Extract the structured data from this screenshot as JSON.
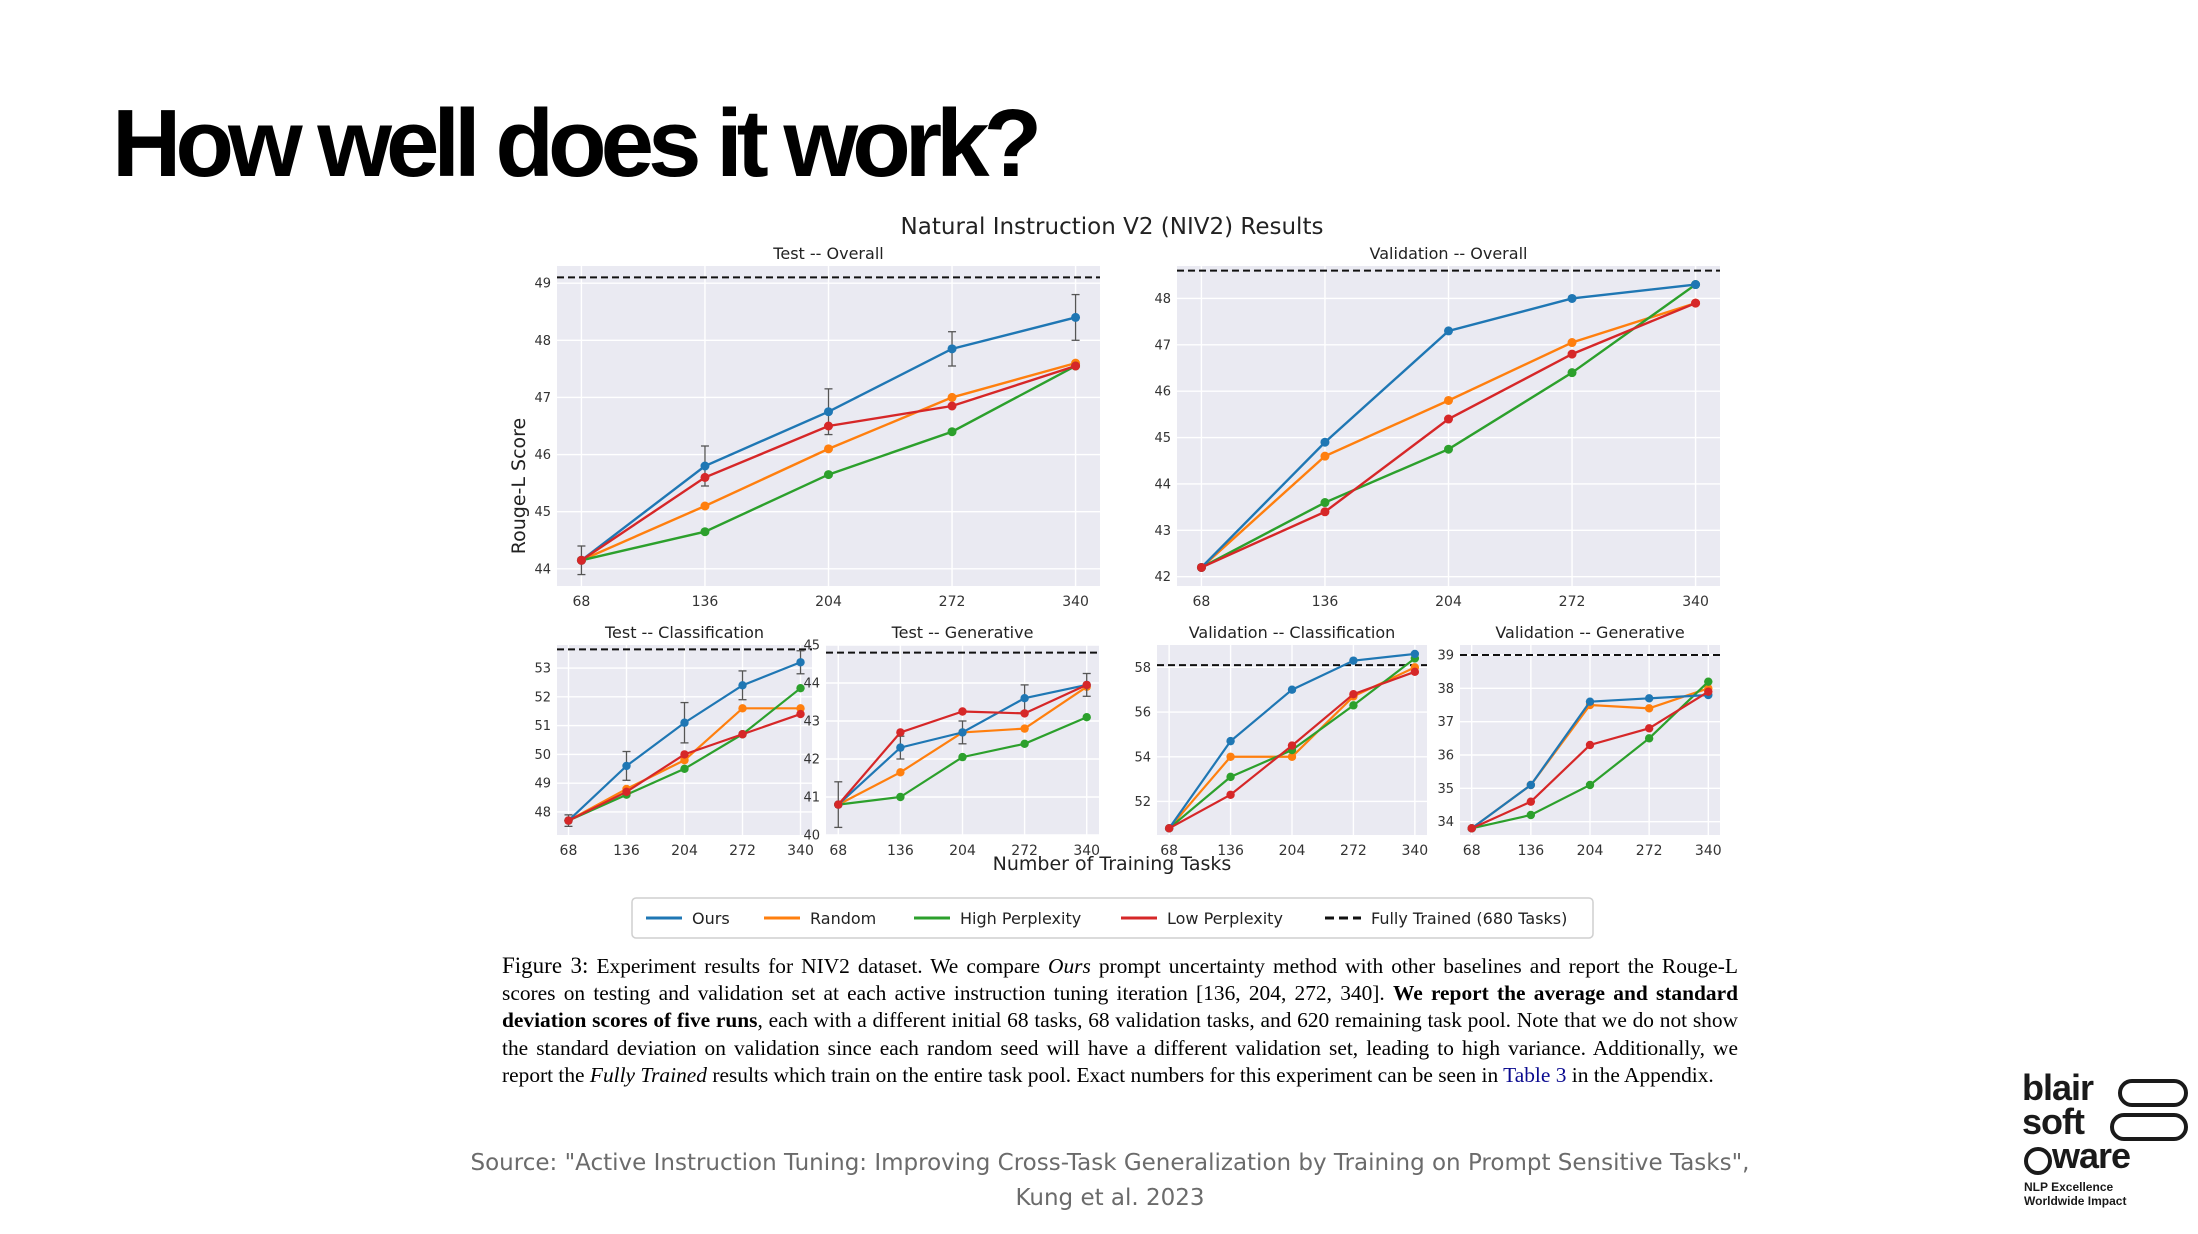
{
  "slide": {
    "title": "How well does it work?",
    "source_line1": "Source: \"Active Instruction Tuning: Improving Cross-Task Generalization by Training on Prompt Sensitive Tasks\",",
    "source_line2": "Kung et al. 2023"
  },
  "logo": {
    "words": [
      "blair",
      "soft",
      "ware"
    ],
    "tagline": [
      "NLP Excellence",
      "Worldwide Impact"
    ]
  },
  "caption": {
    "label": "Figure 3:",
    "part1": "Experiment results for NIV2 dataset. We compare ",
    "ours_italic": "Ours",
    "part2": " prompt uncertainty method with other baselines and report the Rouge-L scores on testing and validation set at each active instruction tuning iteration [136, 204, 272, 340]. ",
    "bold": "We report the average and standard deviation scores of five runs",
    "part3": ", each with a different initial 68 tasks, 68 validation tasks, and 620 remaining task pool. Note that we do not show the standard deviation on validation since each random seed will have a different validation set, leading to high variance. Additionally, we report the ",
    "fully_italic": "Fully Trained",
    "part4": " results which train on the entire task pool. Exact numbers for this experiment can be seen in ",
    "ref": "Table 3",
    "part5": " in the Appendix."
  },
  "chart_data": {
    "suptitle": "Natural Instruction V2 (NIV2) Results",
    "xlabel": "Number of Training Tasks",
    "ylabel": "Rouge-L Score",
    "x": [
      68,
      136,
      204,
      272,
      340
    ],
    "series_meta": [
      {
        "name": "Ours",
        "color": "#1f77b4"
      },
      {
        "name": "Random",
        "color": "#ff7f0e"
      },
      {
        "name": "High Perplexity",
        "color": "#2ca02c"
      },
      {
        "name": "Low Perplexity",
        "color": "#d62728"
      }
    ],
    "legend": {
      "placement": "bottom-center",
      "entries": [
        "Ours",
        "Random",
        "High Perplexity",
        "Low Perplexity",
        "Fully Trained (680 Tasks)"
      ],
      "fully_trained_label": "Fully Trained (680 Tasks)"
    },
    "panels": [
      {
        "type": "line",
        "title": "Test -- Overall",
        "ylim": [
          43.7,
          49.3
        ],
        "yticks": [
          44,
          45,
          46,
          47,
          48,
          49
        ],
        "fully_trained": 49.1,
        "series": [
          {
            "name": "Ours",
            "values": [
              44.15,
              45.8,
              46.75,
              47.85,
              48.4
            ],
            "err": [
              0.25,
              0.35,
              0.4,
              0.3,
              0.4
            ]
          },
          {
            "name": "Random",
            "values": [
              44.15,
              45.1,
              46.1,
              47.0,
              47.6
            ]
          },
          {
            "name": "High Perplexity",
            "values": [
              44.15,
              44.65,
              45.65,
              46.4,
              47.55
            ]
          },
          {
            "name": "Low Perplexity",
            "values": [
              44.15,
              45.6,
              46.5,
              46.85,
              47.55
            ]
          }
        ]
      },
      {
        "type": "line",
        "title": "Validation -- Overall",
        "ylim": [
          41.8,
          48.7
        ],
        "yticks": [
          42,
          43,
          44,
          45,
          46,
          47,
          48
        ],
        "fully_trained": 48.6,
        "series": [
          {
            "name": "Ours",
            "values": [
              42.2,
              44.9,
              47.3,
              48.0,
              48.3
            ]
          },
          {
            "name": "Random",
            "values": [
              42.2,
              44.6,
              45.8,
              47.05,
              47.9
            ]
          },
          {
            "name": "High Perplexity",
            "values": [
              42.2,
              43.6,
              44.75,
              46.4,
              48.3
            ]
          },
          {
            "name": "Low Perplexity",
            "values": [
              42.2,
              43.4,
              45.4,
              46.8,
              47.9
            ]
          }
        ]
      },
      {
        "type": "line",
        "title": "Test -- Classification",
        "ylim": [
          47.2,
          53.8
        ],
        "yticks": [
          48,
          49,
          50,
          51,
          52,
          53
        ],
        "fully_trained": 53.65,
        "series": [
          {
            "name": "Ours",
            "values": [
              47.7,
              49.6,
              51.1,
              52.4,
              53.2
            ],
            "err": [
              0.2,
              0.5,
              0.7,
              0.5,
              0.4
            ]
          },
          {
            "name": "Random",
            "values": [
              47.7,
              48.8,
              49.8,
              51.6,
              51.6
            ]
          },
          {
            "name": "High Perplexity",
            "values": [
              47.7,
              48.6,
              49.5,
              50.7,
              52.3
            ]
          },
          {
            "name": "Low Perplexity",
            "values": [
              47.7,
              48.7,
              50.0,
              50.7,
              51.4
            ]
          }
        ]
      },
      {
        "type": "line",
        "title": "Test -- Generative",
        "ylim": [
          40.0,
          45.0
        ],
        "yticks": [
          40,
          41,
          42,
          43,
          44,
          45
        ],
        "fully_trained": 44.8,
        "series": [
          {
            "name": "Ours",
            "values": [
              40.8,
              42.3,
              42.7,
              43.6,
              43.95
            ],
            "err": [
              0.6,
              0.3,
              0.3,
              0.35,
              0.3
            ]
          },
          {
            "name": "Random",
            "values": [
              40.8,
              41.65,
              42.7,
              42.8,
              43.9
            ]
          },
          {
            "name": "High Perplexity",
            "values": [
              40.8,
              41.0,
              42.05,
              42.4,
              43.1
            ]
          },
          {
            "name": "Low Perplexity",
            "values": [
              40.8,
              42.7,
              43.25,
              43.2,
              43.95
            ]
          }
        ]
      },
      {
        "type": "line",
        "title": "Validation -- Classification",
        "ylim": [
          50.5,
          59.0
        ],
        "yticks": [
          52,
          54,
          56,
          58
        ],
        "fully_trained": 58.1,
        "series": [
          {
            "name": "Ours",
            "values": [
              50.8,
              54.7,
              57.0,
              58.3,
              58.6
            ]
          },
          {
            "name": "Random",
            "values": [
              50.8,
              54.0,
              54.0,
              56.7,
              58.0
            ]
          },
          {
            "name": "High Perplexity",
            "values": [
              50.8,
              53.1,
              54.3,
              56.3,
              58.4
            ]
          },
          {
            "name": "Low Perplexity",
            "values": [
              50.8,
              52.3,
              54.5,
              56.8,
              57.8
            ]
          }
        ]
      },
      {
        "type": "line",
        "title": "Validation -- Generative",
        "ylim": [
          33.6,
          39.3
        ],
        "yticks": [
          34,
          35,
          36,
          37,
          38,
          39
        ],
        "fully_trained": 39.0,
        "series": [
          {
            "name": "Ours",
            "values": [
              33.8,
              35.1,
              37.6,
              37.7,
              37.8
            ]
          },
          {
            "name": "Random",
            "values": [
              33.8,
              35.1,
              37.5,
              37.4,
              38.0
            ]
          },
          {
            "name": "High Perplexity",
            "values": [
              33.8,
              34.2,
              35.1,
              36.5,
              38.2
            ]
          },
          {
            "name": "Low Perplexity",
            "values": [
              33.8,
              34.6,
              36.3,
              36.8,
              37.9
            ]
          }
        ]
      }
    ]
  }
}
